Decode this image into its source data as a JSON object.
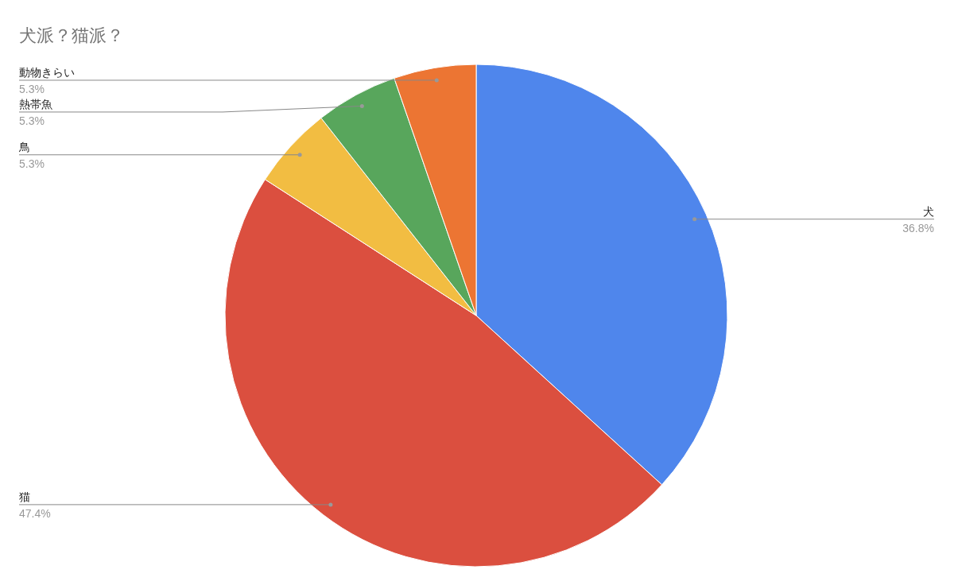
{
  "chart_data": {
    "type": "pie",
    "title": "犬派？猫派？",
    "categories": [
      "犬",
      "猫",
      "鳥",
      "熱帯魚",
      "動物きらい"
    ],
    "values": [
      36.8,
      47.4,
      5.3,
      5.3,
      5.3
    ],
    "colors": [
      "#4f86ec",
      "#db4f3f",
      "#f2bd42",
      "#58a65c",
      "#ec7533"
    ],
    "value_labels": [
      "36.8%",
      "47.4%",
      "5.3%",
      "5.3%",
      "5.3%"
    ],
    "legend": false
  }
}
